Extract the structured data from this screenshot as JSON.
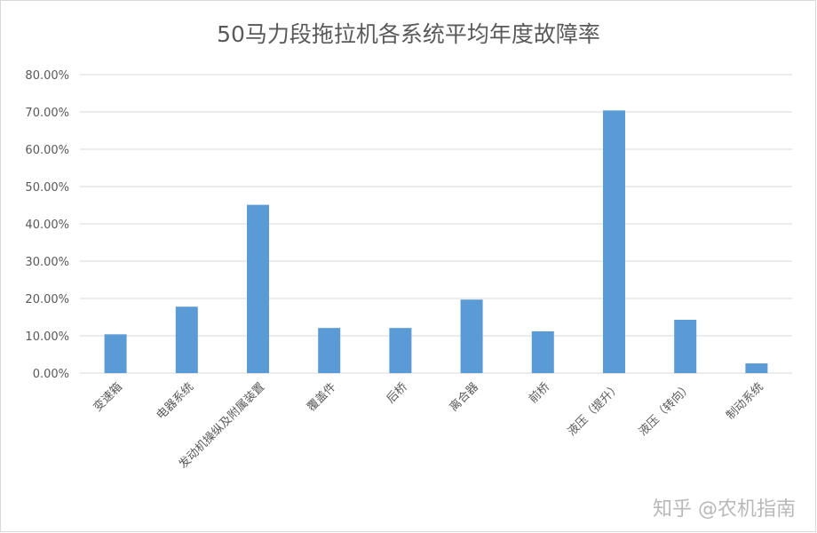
{
  "chart_data": {
    "type": "bar",
    "title": "50马力段拖拉机各系统平均年度故障率",
    "categories": [
      "变速箱",
      "电器系统",
      "发动机操纵及附属装置",
      "覆盖件",
      "后桥",
      "离合器",
      "前桥",
      "液压（提升）",
      "液压（转向）",
      "制动系统"
    ],
    "values": [
      0.104,
      0.178,
      0.451,
      0.121,
      0.121,
      0.197,
      0.112,
      0.704,
      0.143,
      0.026
    ],
    "yticks": [
      "0.00%",
      "10.00%",
      "20.00%",
      "30.00%",
      "40.00%",
      "50.00%",
      "60.00%",
      "70.00%",
      "80.00%"
    ],
    "ylim": [
      0,
      0.8
    ],
    "bar_color": "#5b9bd5",
    "grid": true,
    "legend": "none"
  },
  "watermark": "知乎 @农机指南"
}
